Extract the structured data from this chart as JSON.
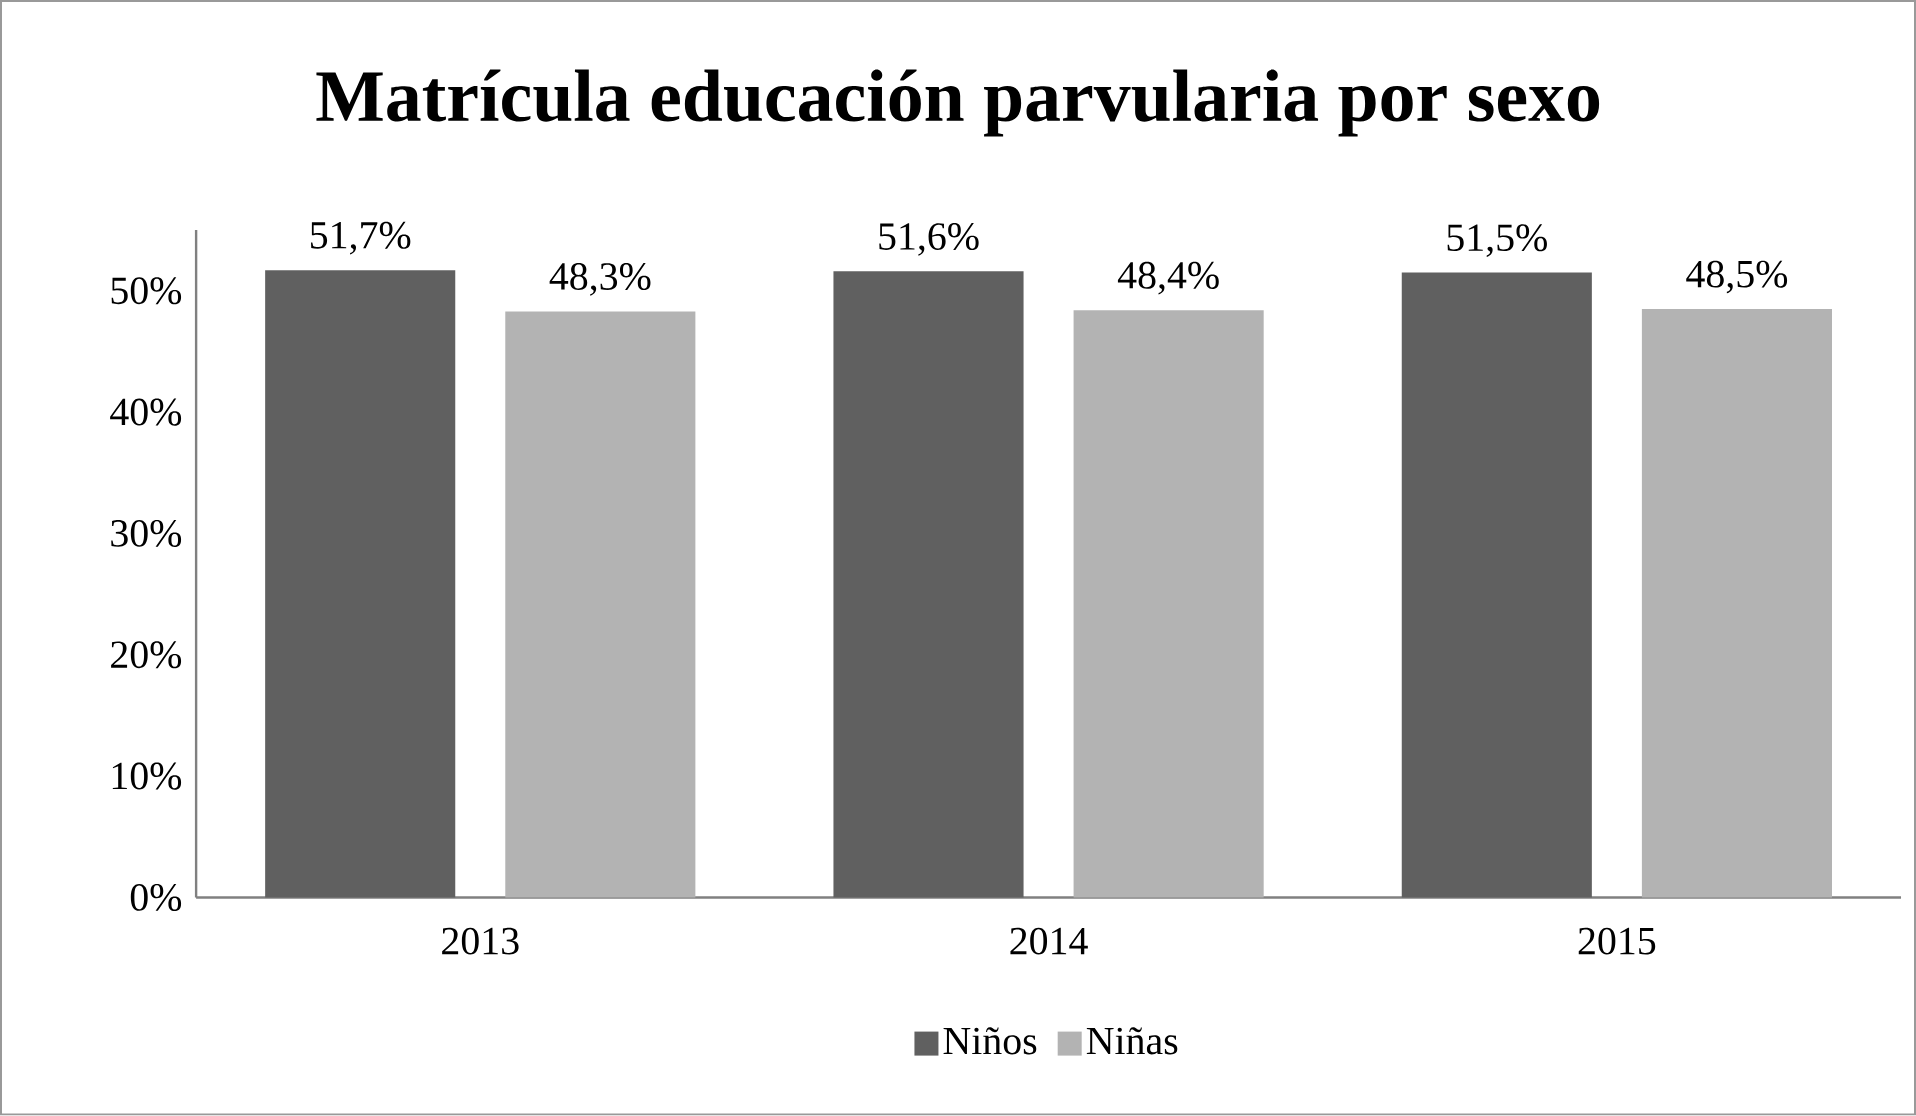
{
  "chart_data": {
    "type": "bar",
    "title": "Matrícula educación parvularia por sexo",
    "categories": [
      "2013",
      "2014",
      "2015"
    ],
    "series": [
      {
        "name": "Niños",
        "color": "#606060",
        "values": [
          51.7,
          51.6,
          51.5
        ],
        "value_labels": [
          "51,7%",
          "51,6%",
          "51,5%"
        ]
      },
      {
        "name": "Niñas",
        "color": "#b3b3b3",
        "values": [
          48.3,
          48.4,
          48.5
        ],
        "value_labels": [
          "48,3%",
          "48,4%",
          "48,5%"
        ]
      }
    ],
    "ylim": [
      0,
      55
    ],
    "yticks": [
      {
        "value": 0,
        "label": "0%"
      },
      {
        "value": 10,
        "label": "10%"
      },
      {
        "value": 20,
        "label": "20%"
      },
      {
        "value": 30,
        "label": "30%"
      },
      {
        "value": 40,
        "label": "40%"
      },
      {
        "value": 50,
        "label": "50%"
      }
    ],
    "grid": false,
    "legend": "bottom"
  }
}
